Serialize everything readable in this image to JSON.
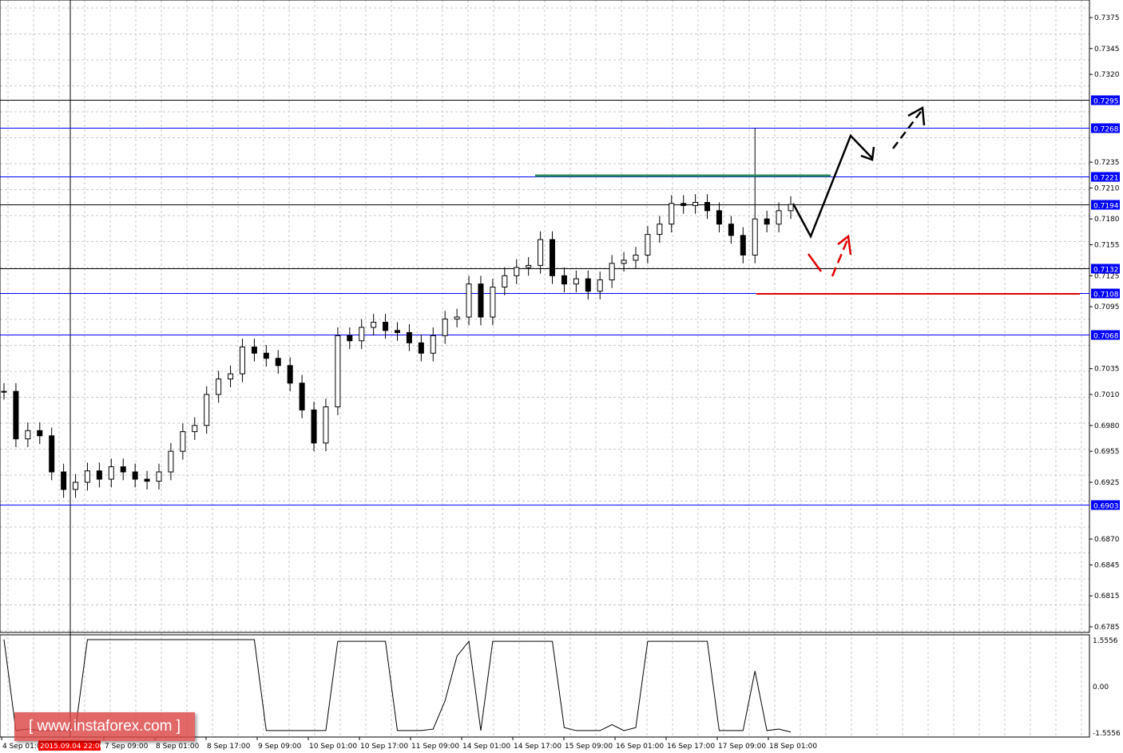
{
  "chart_data": {
    "type": "candlestick",
    "price_axis": {
      "range": [
        0.6785,
        0.7375
      ],
      "ticks": [
        "0.7375",
        "0.7345",
        "0.7320",
        "0.7235",
        "0.7210",
        "0.7180",
        "0.7155",
        "0.7125",
        "0.7095",
        "0.7035",
        "0.7010",
        "0.6980",
        "0.6955",
        "0.6925",
        "0.6870",
        "0.6845",
        "0.6815",
        "0.6785"
      ]
    },
    "time_axis": {
      "ticks": [
        "4 Sep 01:00",
        "7 Sep 09:00",
        "8 Sep 01:00",
        "8 Sep 17:00",
        "9 Sep 09:00",
        "10 Sep 01:00",
        "10 Sep 17:00",
        "11 Sep 09:00",
        "14 Sep 01:00",
        "14 Sep 17:00",
        "15 Sep 09:00",
        "16 Sep 01:00",
        "16 Sep 17:00",
        "17 Sep 09:00",
        "18 Sep 01:00"
      ],
      "cursor_label": "2015.09.04 22:00"
    },
    "close": [
      0.7013,
      0.6967,
      0.6975,
      0.697,
      0.6935,
      0.6918,
      0.6925,
      0.6936,
      0.6928,
      0.694,
      0.6935,
      0.6928,
      0.6926,
      0.6935,
      0.6955,
      0.6974,
      0.698,
      0.701,
      0.7025,
      0.703,
      0.7056,
      0.705,
      0.7045,
      0.7038,
      0.7021,
      0.6995,
      0.6963,
      0.6998,
      0.7067,
      0.7062,
      0.7075,
      0.708,
      0.7072,
      0.707,
      0.706,
      0.705,
      0.7067,
      0.7083,
      0.7085,
      0.7117,
      0.7085,
      0.7114,
      0.7125,
      0.7133,
      0.7135,
      0.716,
      0.7125,
      0.7117,
      0.7122,
      0.711,
      0.7121,
      0.7137,
      0.714,
      0.7145,
      0.7165,
      0.7175,
      0.7195,
      0.7193,
      0.7196,
      0.7188,
      0.7175,
      0.7164,
      0.7145,
      0.718,
      0.7175,
      0.7188,
      0.7194
    ],
    "spike_high": 0.7268,
    "levels": [
      {
        "price": "0.7295",
        "color": "#000000"
      },
      {
        "price": "0.7268",
        "color": "#0000ff"
      },
      {
        "price": "0.7221",
        "color": "#0000ff"
      },
      {
        "price": "0.7194",
        "color": "#000000"
      },
      {
        "price": "0.7132",
        "color": "#000000"
      },
      {
        "price": "0.7108",
        "color": "#0000ff"
      },
      {
        "price": "0.7068",
        "color": "#0000ff"
      },
      {
        "price": "0.6903",
        "color": "#0000ff"
      }
    ],
    "indicator": {
      "range": [
        -1.5556,
        1.5556
      ],
      "ticks": [
        "1.5556",
        "0.00",
        "-1.5556"
      ],
      "values": [
        1.5556,
        -1.5,
        -1.45,
        -1.5,
        -1.5,
        -1.5,
        -1.45,
        1.5556,
        1.5556,
        1.5556,
        1.5556,
        1.5556,
        1.5556,
        1.5556,
        1.5556,
        1.5556,
        1.5556,
        1.5556,
        1.5556,
        1.5556,
        1.5556,
        1.5556,
        -1.5,
        -1.5,
        -1.5,
        -1.5,
        -1.5,
        -1.5,
        1.5,
        1.5,
        1.5,
        1.5,
        1.5,
        -1.5,
        -1.5,
        -1.5,
        -1.45,
        -0.5,
        1.0,
        1.5,
        -1.5,
        1.5,
        1.5,
        1.5,
        1.5,
        1.5,
        1.5,
        -1.4,
        -1.5,
        -1.5,
        -1.5,
        -1.3,
        -1.5,
        -1.4,
        1.5,
        1.5,
        1.5,
        1.5,
        1.5,
        1.5,
        -1.5,
        -1.5,
        -1.5,
        0.5,
        -1.5,
        -1.45,
        -1.55
      ]
    },
    "colors": {
      "support_line": "#0000ff",
      "target_green": "#2e8b57",
      "stop_red": "#e00000",
      "label_bg": "#0000ff"
    }
  },
  "watermark": "[ www.instaforex.com ]"
}
